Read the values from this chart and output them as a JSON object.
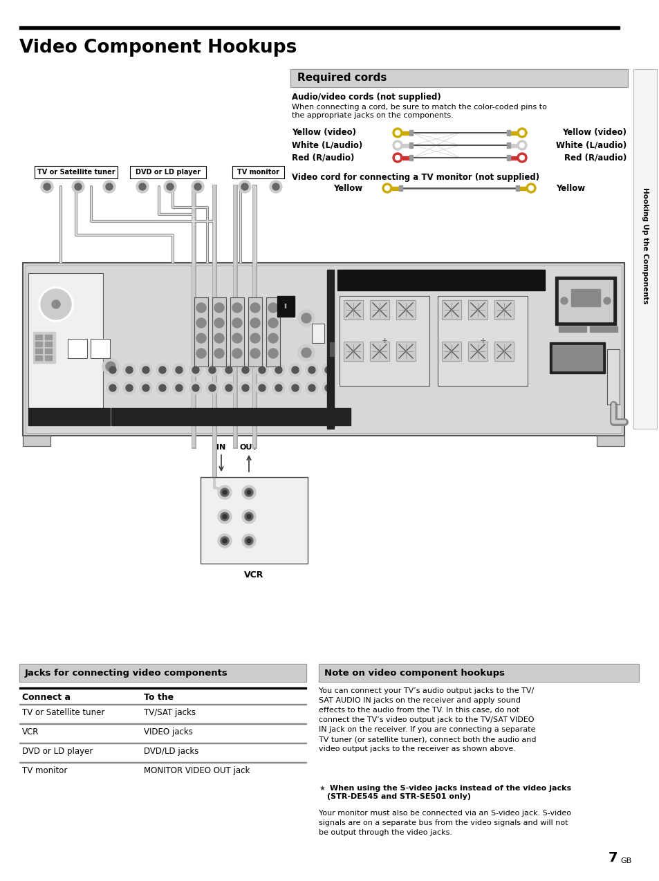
{
  "title": "Video Component Hookups",
  "page_bg": "#ffffff",
  "required_cords_title": "Required cords",
  "av_cords_title": "Audio/video cords (not supplied)",
  "av_cords_desc": "When connecting a cord, be sure to match the color-coded pins to\nthe appropriate jacks on the components.",
  "cord_labels_left": [
    "Yellow (video)",
    "White (L/audio)",
    "Red (R/audio)"
  ],
  "cord_labels_right": [
    "Yellow (video)",
    "White (L/audio)",
    "Red (R/audio)"
  ],
  "video_cord_title": "Video cord for connecting a TV monitor (not supplied)",
  "video_cord_left": "Yellow",
  "video_cord_right": "Yellow",
  "component_labels": [
    "TV or Satellite tuner",
    "DVD or LD player",
    "TV monitor"
  ],
  "vcr_label": "VCR",
  "in_label": "IN",
  "out_label": "OUT",
  "sidebar_text": "Hooking Up the Components",
  "jacks_table_title": "Jacks for connecting video components",
  "jacks_col1_header": "Connect a",
  "jacks_col2_header": "To the",
  "jacks_rows": [
    [
      "TV or Satellite tuner",
      "TV/SAT jacks"
    ],
    [
      "VCR",
      "VIDEO jacks"
    ],
    [
      "DVD or LD player",
      "DVD/LD jacks"
    ],
    [
      "TV monitor",
      "MONITOR VIDEO OUT jack"
    ]
  ],
  "note_title": "Note on video component hookups",
  "note_text": "You can connect your TV’s audio output jacks to the TV/\nSAT AUDIO IN jacks on the receiver and apply sound\neffects to the audio from the TV. In this case, do not\nconnect the TV’s video output jack to the TV/SAT VIDEO\nIN jack on the receiver. If you are connecting a separate\nTV tuner (or satellite tuner), connect both the audio and\nvideo output jacks to the receiver as shown above.",
  "svideo_bold": " When using the S-video jacks instead of the video jacks\n(STR-DE545 and STR-SE501 only)",
  "svideo_text": "Your monitor must also be connected via an S-video jack. S-video\nsignals are on a separate bus from the video signals and will not\nbe output through the video jacks.",
  "page_number": "7",
  "page_suffix": "GB"
}
